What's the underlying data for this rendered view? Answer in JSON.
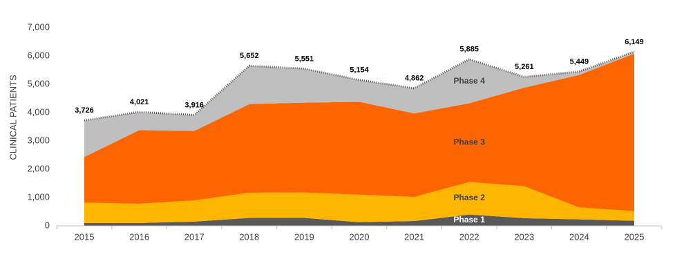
{
  "chart_data": {
    "type": "stacked-area",
    "y_label": "CLINICAL PATIENTS",
    "categories": [
      "2015",
      "2016",
      "2017",
      "2018",
      "2019",
      "2020",
      "2021",
      "2022",
      "2023",
      "2024",
      "2025"
    ],
    "series": [
      {
        "name": "Phase 1",
        "color": "#595959",
        "label_color": "#ffffff",
        "values": [
          100,
          100,
          150,
          280,
          280,
          130,
          170,
          400,
          270,
          230,
          180
        ]
      },
      {
        "name": "Phase 2",
        "color": "#ffb600",
        "label_color": "#404040",
        "values": [
          720,
          680,
          750,
          890,
          900,
          970,
          850,
          1150,
          1130,
          420,
          340
        ]
      },
      {
        "name": "Phase 3",
        "color": "#fd6500",
        "label_color": "#404040",
        "values": [
          1610,
          2600,
          2450,
          3130,
          3170,
          3280,
          2950,
          2780,
          3480,
          4680,
          5560
        ]
      },
      {
        "name": "Phase 4",
        "color": "#bfbfbf",
        "label_color": "#404040",
        "values": [
          1296,
          641,
          566,
          1352,
          1201,
          774,
          892,
          1555,
          381,
          119,
          69
        ]
      }
    ],
    "totals": {
      "values": [
        3726,
        4021,
        3916,
        5652,
        5551,
        5154,
        4862,
        5885,
        5261,
        5449,
        6149
      ],
      "value_labels": [
        "3,726",
        "4,021",
        "3,916",
        "5,652",
        "5,551",
        "5,154",
        "4,862",
        "5,885",
        "5,261",
        "5,449",
        "6,149"
      ]
    },
    "ylim": [
      0,
      7000
    ],
    "yticks": [
      0,
      {
        "value": 1000,
        "label": "1,000"
      },
      {
        "value": 2000,
        "label": "2,000"
      },
      {
        "value": 3000,
        "label": "3,000"
      },
      {
        "value": 4000,
        "label": "4,000"
      },
      {
        "value": 5000,
        "label": "5,000"
      },
      {
        "value": 6000,
        "label": "6,000"
      },
      {
        "value": 7000,
        "label": "7,000"
      }
    ],
    "grid": false
  }
}
